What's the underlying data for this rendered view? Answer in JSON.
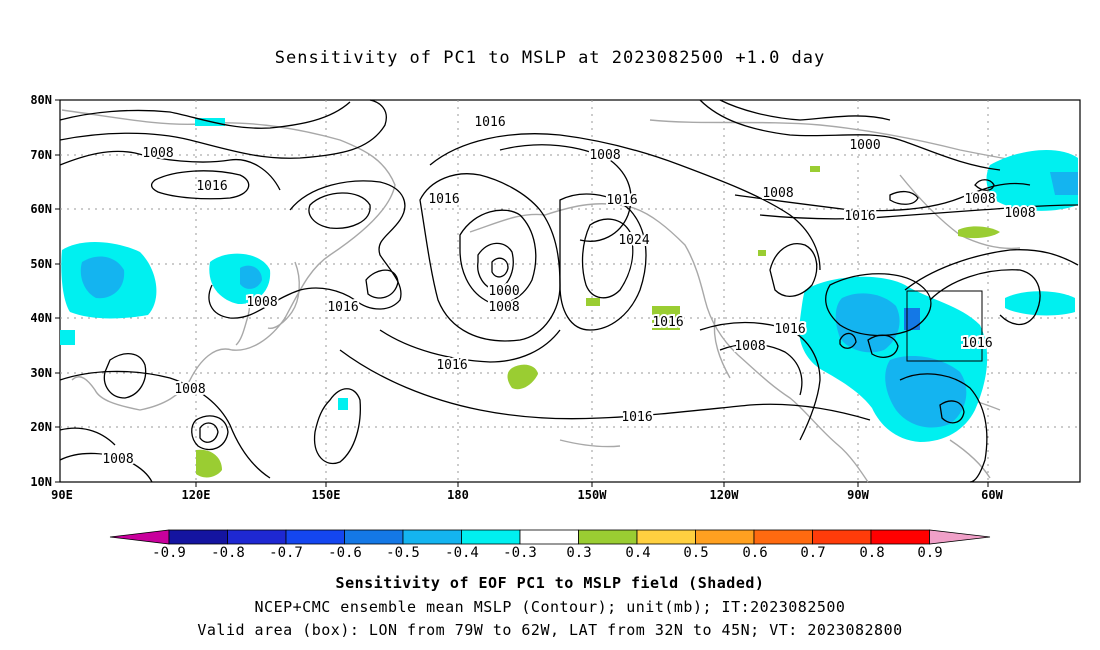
{
  "title": "Sensitivity of PC1 to MSLP at 2023082500 +1.0 day",
  "axes": {
    "lat_labels": [
      "80N",
      "70N",
      "60N",
      "50N",
      "40N",
      "30N",
      "20N",
      "10N"
    ],
    "lon_labels": [
      "90E",
      "120E",
      "150E",
      "180",
      "150W",
      "120W",
      "90W",
      "60W"
    ]
  },
  "contour_labels": [
    "1016",
    "1008",
    "1016",
    "1008",
    "1016",
    "1016",
    "1016",
    "1000",
    "1008",
    "1008",
    "1024",
    "1016",
    "1008",
    "1000",
    "1008",
    "1008",
    "1016",
    "1016",
    "1016",
    "1016",
    "1016",
    "1008",
    "1008",
    "1008"
  ],
  "colorbar": {
    "labels": [
      "-0.9",
      "-0.8",
      "-0.7",
      "-0.6",
      "-0.5",
      "-0.4",
      "-0.3",
      "0.3",
      "0.4",
      "0.5",
      "0.6",
      "0.7",
      "0.8",
      "0.9"
    ],
    "colors": [
      "#c8009c",
      "#1414a0",
      "#1e28d2",
      "#1446f0",
      "#1478e6",
      "#14b4f0",
      "#00f0f0",
      "#ffffff",
      "#9acd32",
      "#ffd040",
      "#ffa020",
      "#ff6a10",
      "#ff3c0a",
      "#ff0000",
      "#f0a0c8"
    ]
  },
  "captions": {
    "line1": "Sensitivity of EOF PC1 to MSLP field (Shaded)",
    "line2": "NCEP+CMC ensemble mean MSLP (Contour); unit(mb); IT:2023082500",
    "line3": "Valid area (box): LON from 79W to 62W, LAT from 32N to 45N; VT: 2023082800"
  }
}
